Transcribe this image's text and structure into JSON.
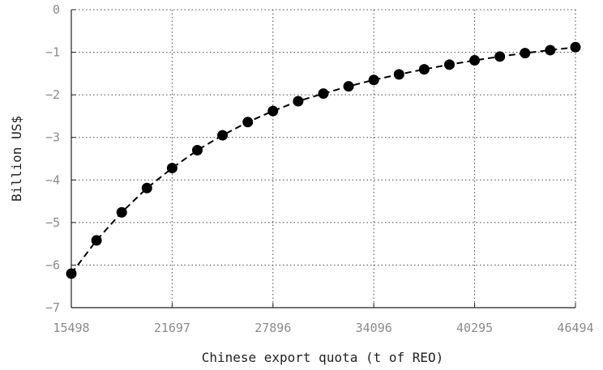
{
  "chart_data": {
    "type": "line",
    "title": "",
    "xlabel": "Chinese export quota (t of REO)",
    "ylabel": "Billion US$",
    "x_ticks": [
      15498,
      21697,
      27896,
      34096,
      40295,
      46494
    ],
    "y_ticks": [
      0,
      -1,
      -2,
      -3,
      -4,
      -5,
      -6,
      -7
    ],
    "y_tick_labels": [
      "0",
      "−1",
      "−2",
      "−3",
      "−4",
      "−5",
      "−6",
      "−7"
    ],
    "xlim": [
      15498,
      46494
    ],
    "ylim": [
      -7,
      0
    ],
    "grid": true,
    "legend": "none",
    "series": [
      {
        "line_style": "dashed",
        "marker": "filled-circle",
        "color": "#000000",
        "x": [
          15498,
          17048,
          18598,
          20147,
          21697,
          23247,
          24797,
          26347,
          27896,
          29446,
          30996,
          32546,
          34096,
          35646,
          37195,
          38745,
          40295,
          41845,
          43395,
          44944,
          46494
        ],
        "y": [
          -6.2,
          -5.42,
          -4.76,
          -4.19,
          -3.72,
          -3.3,
          -2.95,
          -2.64,
          -2.38,
          -2.15,
          -1.97,
          -1.8,
          -1.65,
          -1.52,
          -1.4,
          -1.29,
          -1.19,
          -1.1,
          -1.02,
          -0.95,
          -0.88
        ]
      }
    ]
  }
}
